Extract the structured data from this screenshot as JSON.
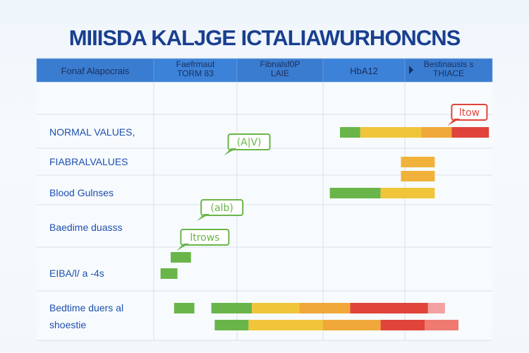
{
  "title": "MIIISDA KALJGE ICTALIAWURHONCNS",
  "chart_data": {
    "type": "bar",
    "orientation": "horizontal-range",
    "x_range": [
      0,
      100
    ],
    "columns": [
      {
        "lines": [
          "Fonaf Alapocrais"
        ]
      },
      {
        "lines": [
          "Faefrmaut",
          "TORM 83"
        ]
      },
      {
        "lines": [
          "Fibnalsf0P",
          "LAIE"
        ]
      },
      {
        "lines": [
          "HbA12"
        ]
      },
      {
        "lines": [
          "Bestinausis s",
          "THIACE"
        ],
        "marker": "triangle"
      }
    ],
    "rows": [
      {
        "label_lines": [
          "NORMAL VALUES,"
        ],
        "bars": [
          {
            "segments": [
              {
                "start": 55,
                "end": 61,
                "color": "#6ab54a"
              },
              {
                "start": 61,
                "end": 79,
                "color": "#f0c53a"
              },
              {
                "start": 79,
                "end": 88,
                "color": "#f0a83a"
              },
              {
                "start": 88,
                "end": 99,
                "color": "#e0443a"
              }
            ]
          }
        ]
      },
      {
        "label_lines": [
          "FIABRALVALUES"
        ],
        "bars": [
          {
            "segments": [
              {
                "start": 73,
                "end": 83,
                "color": "#f0b23a"
              }
            ]
          }
        ]
      },
      {
        "label_lines": [],
        "bars": [
          {
            "segments": [
              {
                "start": 73,
                "end": 83,
                "color": "#f0b23a"
              }
            ]
          }
        ]
      },
      {
        "label_lines": [
          "Blood Gulnses"
        ],
        "bars": [
          {
            "segments": [
              {
                "start": 52,
                "end": 67,
                "color": "#6ab54a"
              },
              {
                "start": 67,
                "end": 83,
                "color": "#f0c53a"
              }
            ]
          }
        ]
      },
      {
        "label_lines": [
          "Baedime duasss"
        ],
        "bars": []
      },
      {
        "label_lines": [],
        "bars": [
          {
            "segments": [
              {
                "start": 5,
                "end": 11,
                "color": "#6ab54a"
              }
            ]
          }
        ]
      },
      {
        "label_lines": [
          "EIBA/l/ a -4s"
        ],
        "bars": [
          {
            "segments": [
              {
                "start": 2,
                "end": 7,
                "color": "#6ab54a"
              }
            ]
          }
        ]
      },
      {
        "label_lines": [
          "Bedtime duers al"
        ],
        "bars": [
          {
            "segments": [
              {
                "start": 6,
                "end": 12,
                "color": "#6ab54a"
              }
            ]
          },
          {
            "segments": [
              {
                "start": 17,
                "end": 29,
                "color": "#6ab54a"
              },
              {
                "start": 29,
                "end": 43,
                "color": "#f0c53a"
              },
              {
                "start": 43,
                "end": 58,
                "color": "#f0a83a"
              },
              {
                "start": 58,
                "end": 81,
                "color": "#e0443a"
              },
              {
                "start": 81,
                "end": 86,
                "color": "#f2a0a0"
              }
            ]
          }
        ]
      },
      {
        "label_lines": [
          "shoestie"
        ],
        "bars": [
          {
            "segments": [
              {
                "start": 18,
                "end": 28,
                "color": "#6ab54a"
              },
              {
                "start": 28,
                "end": 50,
                "color": "#f0c53a"
              },
              {
                "start": 50,
                "end": 67,
                "color": "#f0a83a"
              },
              {
                "start": 67,
                "end": 80,
                "color": "#e0443a"
              },
              {
                "start": 80,
                "end": 90,
                "color": "#ee7a70"
              }
            ]
          }
        ]
      }
    ],
    "annotations": [
      {
        "text": "ltow",
        "row": 0,
        "at": 88,
        "color": "#e0443a",
        "pointer": "down-left"
      },
      {
        "text": "(A|V)",
        "row": 1,
        "at": 22,
        "color": "#6ab54a",
        "pointer": "down-left"
      },
      {
        "text": "(alb)",
        "row": 4,
        "at": 14,
        "color": "#6ab54a",
        "pointer": "down-left"
      },
      {
        "text": "ltrows",
        "row": 5,
        "at": 8,
        "color": "#6ab54a",
        "pointer": "down-left"
      }
    ],
    "colors": {
      "header": "#3b7fd4",
      "green": "#6ab54a",
      "yellow": "#f0c53a",
      "orange": "#f0a83a",
      "red": "#e0443a"
    }
  }
}
